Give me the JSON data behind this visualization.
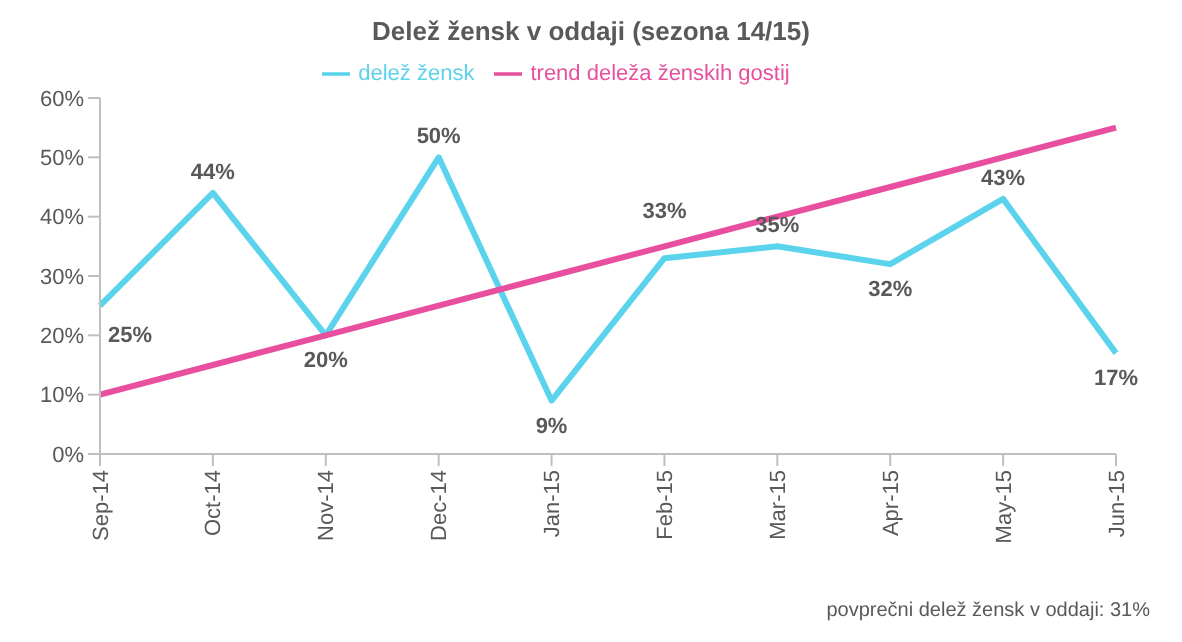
{
  "chart_data": {
    "type": "line",
    "title": "Delež žensk v oddaji (sezona 14/15)",
    "categories": [
      "Sep-14",
      "Oct-14",
      "Nov-14",
      "Dec-14",
      "Jan-15",
      "Feb-15",
      "Mar-15",
      "Apr-15",
      "May-15",
      "Jun-15"
    ],
    "series": [
      {
        "name": "delež žensk",
        "color": "#5bd3ec",
        "values": [
          25,
          44,
          20,
          50,
          9,
          33,
          35,
          32,
          43,
          17
        ],
        "value_labels": [
          "25%",
          "44%",
          "20%",
          "50%",
          "9%",
          "33%",
          "35%",
          "32%",
          "43%",
          "17%"
        ]
      },
      {
        "name": "trend deleža ženskih gostij",
        "color": "#e84f9e",
        "values": [
          10,
          15,
          20,
          25,
          30,
          35,
          40,
          45,
          50,
          55
        ]
      }
    ],
    "ylim": [
      0,
      60
    ],
    "yticks": [
      {
        "value": 0,
        "label": "0%"
      },
      {
        "value": 10,
        "label": "10%"
      },
      {
        "value": 20,
        "label": "20%"
      },
      {
        "value": 30,
        "label": "30%"
      },
      {
        "value": 40,
        "label": "40%"
      },
      {
        "value": 50,
        "label": "50%"
      },
      {
        "value": 60,
        "label": "60%"
      }
    ],
    "grid": false,
    "legend": "top",
    "marker": "none",
    "line_style": "solid",
    "annotations": [
      "povprečni delež žensk v oddaji: 31%"
    ]
  }
}
